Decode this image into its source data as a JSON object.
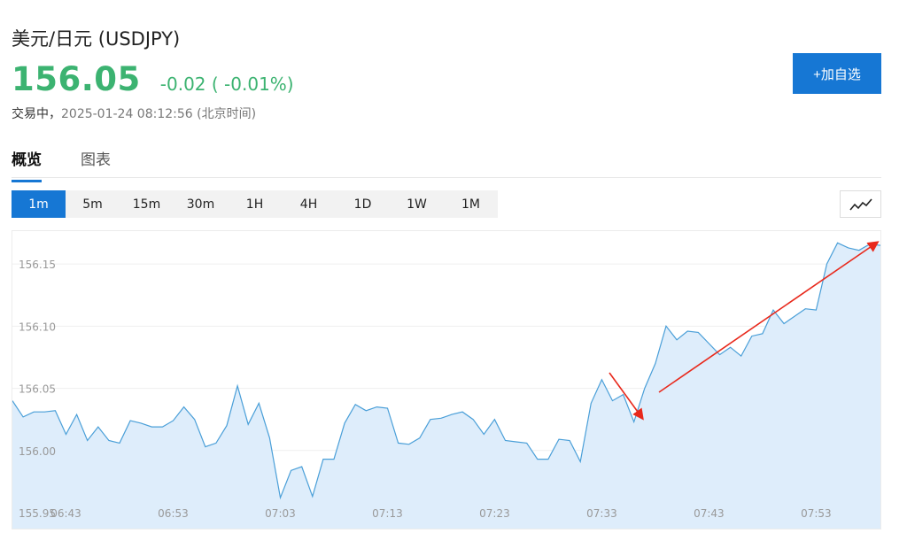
{
  "header": {
    "title": "美元/日元  (USDJPY)",
    "price": "156.05",
    "change": "-0.02 ( -0.01%)",
    "status": "交易中，",
    "timestamp": "2025-01-24 08:12:56 (北京时间)",
    "add_button": "+加自选"
  },
  "tabs": [
    {
      "label": "概览",
      "active": true
    },
    {
      "label": "图表",
      "active": false
    }
  ],
  "ranges": [
    {
      "label": "1m",
      "active": true
    },
    {
      "label": "5m",
      "active": false
    },
    {
      "label": "15m",
      "active": false
    },
    {
      "label": "30m",
      "active": false
    },
    {
      "label": "1H",
      "active": false
    },
    {
      "label": "4H",
      "active": false
    },
    {
      "label": "1D",
      "active": false
    },
    {
      "label": "1W",
      "active": false
    },
    {
      "label": "1M",
      "active": false
    }
  ],
  "chart_type_icon": "line-chart-icon",
  "colors": {
    "price_green": "#3cb371",
    "accent_blue": "#1677d4",
    "line": "#4a9fd8",
    "fill": "#deedfb",
    "arrow": "#e8291c"
  },
  "chart_data": {
    "type": "area",
    "ylim": [
      155.95,
      156.18
    ],
    "yticks": [
      "156.15",
      "156.10",
      "156.05",
      "156.00",
      "155.95"
    ],
    "ytick_values": [
      156.15,
      156.1,
      156.05,
      156.0,
      155.95
    ],
    "xticks": [
      "06:43",
      "06:53",
      "07:03",
      "07:13",
      "07:23",
      "07:33",
      "07:43",
      "07:53"
    ],
    "xtick_index": [
      5,
      15,
      25,
      35,
      45,
      55,
      65,
      75
    ],
    "grid": true,
    "values": [
      156.04,
      156.027,
      156.031,
      156.031,
      156.032,
      156.013,
      156.029,
      156.008,
      156.019,
      156.008,
      156.006,
      156.024,
      156.022,
      156.019,
      156.019,
      156.024,
      156.035,
      156.025,
      156.003,
      156.006,
      156.02,
      156.052,
      156.021,
      156.038,
      156.01,
      155.962,
      155.984,
      155.987,
      155.963,
      155.993,
      155.993,
      156.022,
      156.037,
      156.032,
      156.035,
      156.034,
      156.006,
      156.005,
      156.01,
      156.025,
      156.026,
      156.029,
      156.031,
      156.025,
      156.013,
      156.025,
      156.008,
      156.007,
      156.006,
      155.993,
      155.993,
      156.009,
      156.008,
      155.991,
      156.038,
      156.057,
      156.04,
      156.045,
      156.023,
      156.05,
      156.07,
      156.1,
      156.089,
      156.096,
      156.095,
      156.086,
      156.077,
      156.083,
      156.076,
      156.092,
      156.094,
      156.113,
      156.102,
      156.108,
      156.114,
      156.113,
      156.15,
      156.167,
      156.163,
      156.161,
      156.166,
      156.165
    ]
  }
}
